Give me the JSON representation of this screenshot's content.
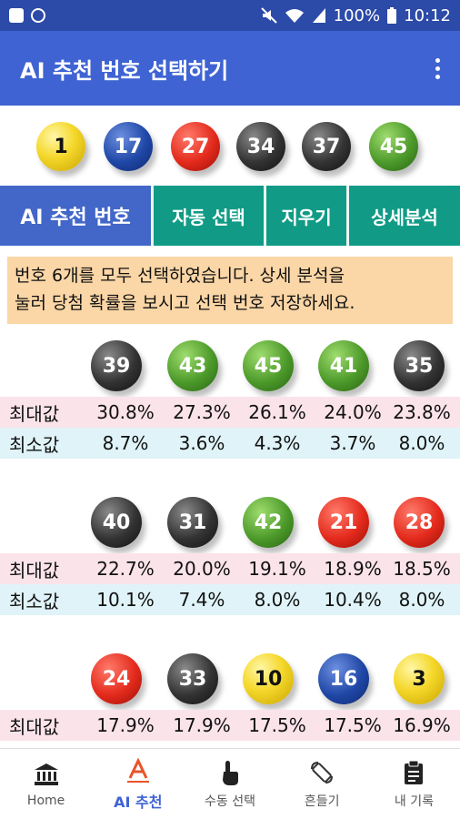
{
  "status": {
    "battery": "100%",
    "time": "10:12"
  },
  "appbar": {
    "title": "AI 추천 번호 선택하기"
  },
  "drawn_balls": [
    {
      "n": "1",
      "color": "yellow"
    },
    {
      "n": "17",
      "color": "blue"
    },
    {
      "n": "27",
      "color": "red"
    },
    {
      "n": "34",
      "color": "black"
    },
    {
      "n": "37",
      "color": "black"
    },
    {
      "n": "45",
      "color": "green"
    }
  ],
  "tabs": {
    "main": "AI 추천 번호",
    "auto": "자동 선택",
    "clear": "지우기",
    "detail": "상세분석"
  },
  "notice": {
    "line1": "번호 6개를 모두 선택하였습니다. 상세 분석을",
    "line2": "눌러 당첨 확률을 보시고 선택 번호 저장하세요."
  },
  "labels": {
    "max": "최대값",
    "min": "최소값"
  },
  "groups": [
    {
      "balls": [
        {
          "n": "39",
          "color": "black"
        },
        {
          "n": "43",
          "color": "green"
        },
        {
          "n": "45",
          "color": "green"
        },
        {
          "n": "41",
          "color": "green"
        },
        {
          "n": "35",
          "color": "black"
        }
      ],
      "max": [
        "30.8%",
        "27.3%",
        "26.1%",
        "24.0%",
        "23.8%"
      ],
      "min": [
        "8.7%",
        "3.6%",
        "4.3%",
        "3.7%",
        "8.0%"
      ]
    },
    {
      "balls": [
        {
          "n": "40",
          "color": "black"
        },
        {
          "n": "31",
          "color": "black"
        },
        {
          "n": "42",
          "color": "green"
        },
        {
          "n": "21",
          "color": "red"
        },
        {
          "n": "28",
          "color": "red"
        }
      ],
      "max": [
        "22.7%",
        "20.0%",
        "19.1%",
        "18.9%",
        "18.5%"
      ],
      "min": [
        "10.1%",
        "7.4%",
        "8.0%",
        "10.4%",
        "8.0%"
      ]
    },
    {
      "balls": [
        {
          "n": "24",
          "color": "red"
        },
        {
          "n": "33",
          "color": "black"
        },
        {
          "n": "10",
          "color": "yellow"
        },
        {
          "n": "16",
          "color": "blue"
        },
        {
          "n": "3",
          "color": "yellow"
        }
      ],
      "max": [
        "17.9%",
        "17.9%",
        "17.5%",
        "17.5%",
        "16.9%"
      ]
    }
  ],
  "nav": [
    {
      "label": "Home",
      "icon": "bank-icon"
    },
    {
      "label": "AI 추천",
      "icon": "letter-a-icon"
    },
    {
      "label": "수동 선택",
      "icon": "touch-hand-icon"
    },
    {
      "label": "흔들기",
      "icon": "rotate-phone-icon"
    },
    {
      "label": "내 기록",
      "icon": "clipboard-icon"
    }
  ]
}
